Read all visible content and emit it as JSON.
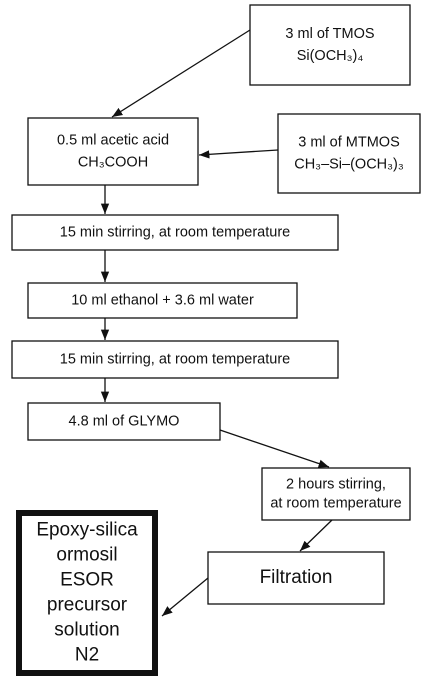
{
  "nodes": [
    {
      "lines": [
        "3 ml of TMOS",
        "Si(OCH₃)₄"
      ]
    },
    {
      "lines": [
        "0.5 ml  acetic acid",
        "CH₃COOH"
      ]
    },
    {
      "lines": [
        "3 ml of MTMOS",
        "CH₃–Si–(OCH₃)₃"
      ]
    },
    {
      "lines": [
        "15 min stirring,  at room temperature"
      ]
    },
    {
      "lines": [
        "10 ml ethanol + 3.6 ml water"
      ]
    },
    {
      "lines": [
        "15 min stirring,  at room temperature"
      ]
    },
    {
      "lines": [
        "4.8 ml of GLYMO"
      ]
    },
    {
      "lines": [
        "2 hours stirring,",
        "at room temperature"
      ]
    },
    {
      "lines": [
        "Filtration"
      ]
    },
    {
      "lines": [
        "Epoxy-silica",
        "ormosil",
        "ESOR",
        "precursor",
        "solution",
        "N2"
      ]
    }
  ]
}
